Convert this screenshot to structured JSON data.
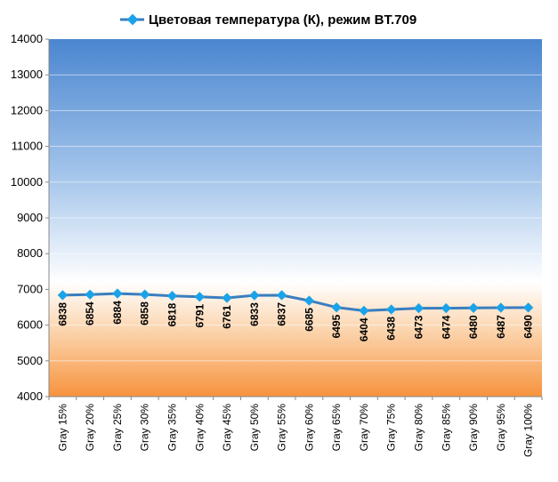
{
  "chart_data": {
    "type": "line",
    "title": "",
    "xlabel": "",
    "ylabel": "",
    "ylim": [
      4000,
      14000
    ],
    "yticks": [
      4000,
      5000,
      6000,
      7000,
      8000,
      9000,
      10000,
      11000,
      12000,
      13000,
      14000
    ],
    "grid": true,
    "legend_position": "top",
    "categories": [
      "Gray 15%",
      "Gray 20%",
      "Gray 25%",
      "Gray 30%",
      "Gray 35%",
      "Gray 40%",
      "Gray 45%",
      "Gray 50%",
      "Gray 55%",
      "Gray 60%",
      "Gray 65%",
      "Gray 70%",
      "Gray 75%",
      "Gray 80%",
      "Gray 85%",
      "Gray 90%",
      "Gray 95%",
      "Gray 100%"
    ],
    "series": [
      {
        "name": "Цветовая температура (К), режим BT.709",
        "color": "#3a7ebf",
        "marker_color": "#1aa3e8",
        "values": [
          6838,
          6854,
          6884,
          6858,
          6818,
          6791,
          6761,
          6833,
          6837,
          6685,
          6495,
          6404,
          6438,
          6473,
          6474,
          6480,
          6487,
          6490
        ]
      }
    ]
  }
}
